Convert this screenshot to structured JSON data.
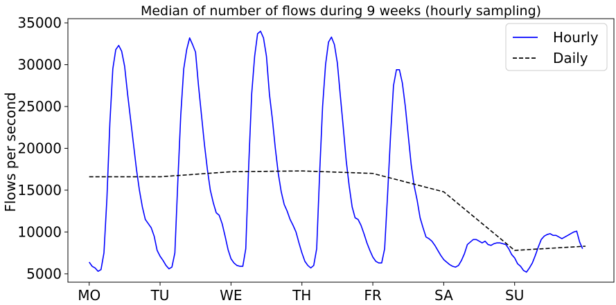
{
  "chart_data": {
    "type": "line",
    "title": "Median of number of flows during 9 weeks (hourly sampling)",
    "xlabel": "",
    "ylabel": "Flows per second",
    "xlim": [
      -0.3,
      7.4
    ],
    "ylim": [
      4000,
      35500
    ],
    "x_ticks": [
      {
        "value": 0,
        "label": "MO"
      },
      {
        "value": 1,
        "label": "TU"
      },
      {
        "value": 2,
        "label": "WE"
      },
      {
        "value": 3,
        "label": "TH"
      },
      {
        "value": 4,
        "label": "FR"
      },
      {
        "value": 5,
        "label": "SA"
      },
      {
        "value": 6,
        "label": "SU"
      }
    ],
    "y_ticks": [
      5000,
      10000,
      15000,
      20000,
      25000,
      30000,
      35000
    ],
    "grid": false,
    "legend_position": "top-right",
    "series": [
      {
        "name": "Hourly",
        "color": "#0000ff",
        "style": "solid",
        "x_unit": "days from Monday 00:00, hourly samples",
        "values": [
          6400,
          5900,
          5700,
          5300,
          5500,
          7500,
          14000,
          23000,
          29500,
          31800,
          32300,
          31600,
          29800,
          26500,
          23500,
          20500,
          17500,
          15000,
          13000,
          11500,
          11000,
          10500,
          9500,
          7800,
          7100,
          6600,
          6000,
          5600,
          5800,
          7500,
          16000,
          24000,
          29500,
          31800,
          33200,
          32400,
          31500,
          27500,
          24000,
          20500,
          17500,
          15000,
          13500,
          12300,
          12000,
          11000,
          9500,
          7900,
          6800,
          6300,
          6000,
          5900,
          5900,
          8000,
          18000,
          26500,
          31000,
          33700,
          34000,
          33200,
          31000,
          26500,
          23500,
          20000,
          17000,
          14800,
          13300,
          12500,
          11500,
          10800,
          10000,
          8700,
          7500,
          6500,
          6000,
          5700,
          6000,
          8000,
          17000,
          25000,
          30000,
          32700,
          33300,
          32400,
          30200,
          26300,
          22500,
          18500,
          15500,
          13000,
          11700,
          11500,
          10800,
          9800,
          8700,
          7800,
          7000,
          6500,
          6300,
          6300,
          8000,
          14500,
          21500,
          27500,
          29400,
          29400,
          27800,
          25000,
          21500,
          18000,
          15500,
          13800,
          11700,
          10500,
          9400,
          9200,
          8900,
          8400,
          7800,
          7200,
          6700,
          6400,
          6100,
          5900,
          5800,
          6000,
          6600,
          7400,
          8500,
          8800,
          9100,
          9100,
          8900,
          8700,
          8900,
          8500,
          8400,
          8600,
          8700,
          8700,
          8600,
          8500,
          8000,
          7300,
          6900,
          6200,
          5900,
          5400,
          5200,
          5700,
          6300,
          7200,
          8200,
          9100,
          9500,
          9700,
          9800,
          9600,
          9600,
          9400,
          9200,
          9400,
          9600,
          9800,
          10000,
          10100,
          8800,
          8000
        ]
      },
      {
        "name": "Daily",
        "color": "#000000",
        "style": "dashed",
        "x": [
          0,
          1,
          2,
          3,
          4,
          5,
          6,
          7
        ],
        "values": [
          16600,
          16600,
          17200,
          17300,
          17000,
          14800,
          7800,
          8300
        ]
      }
    ]
  }
}
